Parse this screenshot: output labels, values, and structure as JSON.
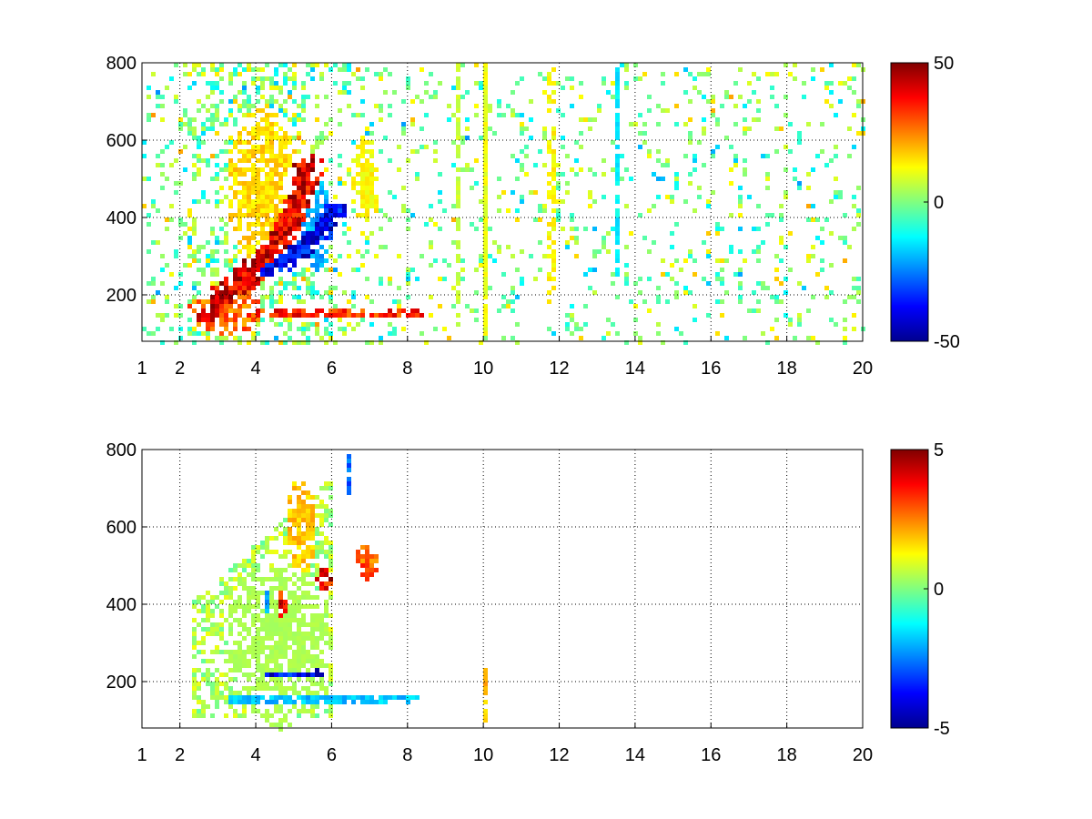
{
  "chart_data": [
    {
      "type": "heatmap",
      "x_ticks": [
        "1",
        "2",
        "4",
        "6",
        "8",
        "10",
        "12",
        "14",
        "16",
        "18",
        "20"
      ],
      "x_tick_values": [
        1,
        2,
        4,
        6,
        8,
        10,
        12,
        14,
        16,
        18,
        20
      ],
      "y_ticks": [
        "200",
        "400",
        "600",
        "800"
      ],
      "y_tick_values": [
        200,
        400,
        600,
        800
      ],
      "xlim": [
        1,
        20
      ],
      "ylim": [
        80,
        800
      ],
      "grid": true,
      "colormap": "jet",
      "colorbar": {
        "ticks": [
          "50",
          "0",
          "-50"
        ],
        "tick_values": [
          50,
          0,
          -50
        ],
        "clim": [
          -50,
          50
        ]
      },
      "features": [
        {
          "shape": "curve",
          "value": 45,
          "points": [
            [
              2.8,
              140
            ],
            [
              3.3,
              210
            ],
            [
              3.8,
              250
            ],
            [
              4.3,
              300
            ],
            [
              4.7,
              360
            ],
            [
              5.0,
              420
            ],
            [
              5.2,
              480
            ],
            [
              5.35,
              540
            ]
          ]
        },
        {
          "shape": "curve",
          "value": -42,
          "points": [
            [
              4.2,
              265
            ],
            [
              4.6,
              280
            ],
            [
              5.0,
              300
            ],
            [
              5.4,
              330
            ],
            [
              5.7,
              370
            ],
            [
              5.9,
              420
            ]
          ]
        },
        {
          "shape": "band",
          "value": 38,
          "x_range": [
            3.0,
            8.4
          ],
          "y": 150
        },
        {
          "shape": "blob",
          "value": 18,
          "center": [
            4.2,
            470
          ],
          "spread": [
            0.6,
            140
          ]
        },
        {
          "shape": "blob",
          "value": 30,
          "center": [
            3.2,
            160
          ],
          "spread": [
            0.6,
            40
          ]
        },
        {
          "shape": "blob",
          "value": -22,
          "center": [
            5.6,
            380
          ],
          "spread": [
            0.25,
            80
          ]
        },
        {
          "shape": "blob",
          "value": 14,
          "center": [
            6.9,
            500
          ],
          "spread": [
            0.25,
            70
          ]
        },
        {
          "shape": "column",
          "value": 12,
          "x": 10.05,
          "y_range": [
            100,
            800
          ]
        },
        {
          "shape": "column",
          "value": 14,
          "x": 11.8,
          "y_range": [
            180,
            800
          ]
        },
        {
          "shape": "column",
          "value": -15,
          "x": 13.5,
          "y_range": [
            250,
            800
          ]
        },
        {
          "shape": "column",
          "value": 8,
          "x": 9.3,
          "y_range": [
            100,
            800
          ]
        }
      ]
    },
    {
      "type": "heatmap",
      "x_ticks": [
        "1",
        "2",
        "4",
        "6",
        "8",
        "10",
        "12",
        "14",
        "16",
        "18",
        "20"
      ],
      "x_tick_values": [
        1,
        2,
        4,
        6,
        8,
        10,
        12,
        14,
        16,
        18,
        20
      ],
      "y_ticks": [
        "200",
        "400",
        "600",
        "800"
      ],
      "y_tick_values": [
        200,
        400,
        600,
        800
      ],
      "xlim": [
        1,
        20
      ],
      "ylim": [
        80,
        800
      ],
      "grid": true,
      "colormap": "jet",
      "colorbar": {
        "ticks": [
          "5",
          "0",
          "-5"
        ],
        "tick_values": [
          5,
          0,
          -5
        ],
        "clim": [
          -5,
          5
        ]
      },
      "features": [
        {
          "shape": "blob",
          "value": 0.5,
          "center": [
            4.6,
            300
          ],
          "spread": [
            0.9,
            140
          ]
        },
        {
          "shape": "band",
          "value": -2.0,
          "x_range": [
            3.3,
            8.3
          ],
          "y": 155
        },
        {
          "shape": "band",
          "value": -4.2,
          "x_range": [
            4.2,
            5.8
          ],
          "y": 220
        },
        {
          "shape": "blob",
          "value": 4.3,
          "center": [
            5.8,
            455
          ],
          "spread": [
            0.12,
            30
          ]
        },
        {
          "shape": "blob",
          "value": 4.0,
          "center": [
            4.7,
            390
          ],
          "spread": [
            0.15,
            50
          ]
        },
        {
          "shape": "blob",
          "value": -2.5,
          "center": [
            4.3,
            400
          ],
          "spread": [
            0.15,
            40
          ]
        },
        {
          "shape": "blob",
          "value": 3.2,
          "center": [
            6.9,
            510
          ],
          "spread": [
            0.2,
            30
          ]
        },
        {
          "shape": "blob",
          "value": 2.0,
          "center": [
            5.2,
            600
          ],
          "spread": [
            0.25,
            80
          ]
        },
        {
          "shape": "column",
          "value": 2.2,
          "x": 10.05,
          "y_range": [
            100,
            240
          ]
        },
        {
          "shape": "column",
          "value": -3.0,
          "x": 6.45,
          "y_range": [
            680,
            790
          ]
        }
      ]
    }
  ]
}
